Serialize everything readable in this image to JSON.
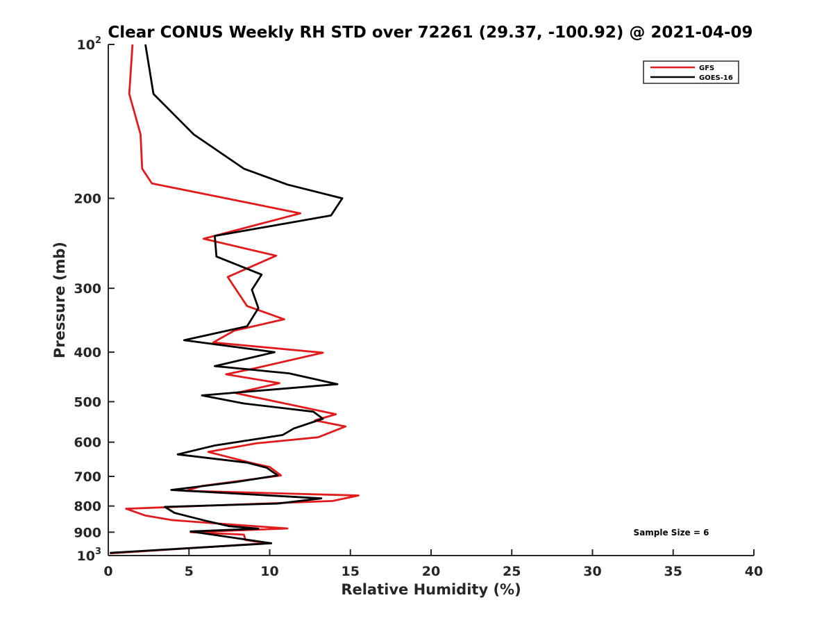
{
  "chart_data": {
    "type": "line",
    "title": "Clear CONUS Weekly RH STD over 72261 (29.37, -100.92) @ 2021-04-09",
    "xlabel": "Relative Humidity (%)",
    "ylabel": "Pressure (mb)",
    "xlim": [
      0,
      40
    ],
    "ylim": [
      100,
      1000
    ],
    "y_scale": "log",
    "y_reversed": true,
    "x_ticks": [
      0,
      5,
      10,
      15,
      20,
      25,
      30,
      35,
      40
    ],
    "y_ticks": [
      {
        "value": 100,
        "label": "10",
        "sup": "2"
      },
      {
        "value": 200,
        "label": "200"
      },
      {
        "value": 300,
        "label": "300"
      },
      {
        "value": 400,
        "label": "400"
      },
      {
        "value": 500,
        "label": "500"
      },
      {
        "value": 600,
        "label": "600"
      },
      {
        "value": 700,
        "label": "700"
      },
      {
        "value": 800,
        "label": "800"
      },
      {
        "value": 900,
        "label": "900"
      },
      {
        "value": 1000,
        "label": "10",
        "sup": "3"
      }
    ],
    "grid": false,
    "legend_position": "top-right",
    "series": [
      {
        "name": "GFS",
        "color": "#e31a1c",
        "points": [
          [
            1.5,
            100
          ],
          [
            1.3,
            125
          ],
          [
            2.0,
            150
          ],
          [
            2.1,
            175
          ],
          [
            2.7,
            187
          ],
          [
            11.9,
            214
          ],
          [
            5.9,
            240
          ],
          [
            10.4,
            259
          ],
          [
            7.4,
            285
          ],
          [
            7.8,
            298
          ],
          [
            8.6,
            325
          ],
          [
            10.9,
            345
          ],
          [
            7.8,
            363
          ],
          [
            6.5,
            383
          ],
          [
            13.3,
            401
          ],
          [
            9.1,
            430
          ],
          [
            7.3,
            442
          ],
          [
            10.6,
            460
          ],
          [
            7.9,
            481
          ],
          [
            14.1,
            529
          ],
          [
            12.8,
            544
          ],
          [
            14.7,
            559
          ],
          [
            13.0,
            587
          ],
          [
            9.2,
            603
          ],
          [
            6.2,
            627
          ],
          [
            8.8,
            658
          ],
          [
            10.0,
            671
          ],
          [
            10.7,
            697
          ],
          [
            5.8,
            731
          ],
          [
            4.8,
            747
          ],
          [
            15.5,
            763
          ],
          [
            13.9,
            782
          ],
          [
            1.1,
            810
          ],
          [
            2.3,
            835
          ],
          [
            3.9,
            852
          ],
          [
            6.2,
            863
          ],
          [
            11.1,
            885
          ],
          [
            5.1,
            900
          ],
          [
            8.4,
            910
          ],
          [
            8.5,
            932
          ],
          [
            9.8,
            946
          ],
          [
            0.1,
            990
          ]
        ]
      },
      {
        "name": "GOES-16",
        "color": "#000000",
        "points": [
          [
            2.3,
            100
          ],
          [
            2.8,
            125
          ],
          [
            5.3,
            150
          ],
          [
            8.4,
            175
          ],
          [
            11.1,
            188
          ],
          [
            14.5,
            200
          ],
          [
            13.8,
            216
          ],
          [
            6.6,
            237
          ],
          [
            6.7,
            260
          ],
          [
            9.5,
            282
          ],
          [
            8.9,
            302
          ],
          [
            9.3,
            328
          ],
          [
            8.6,
            356
          ],
          [
            4.7,
            379
          ],
          [
            10.3,
            400
          ],
          [
            6.6,
            426
          ],
          [
            11.2,
            440
          ],
          [
            14.2,
            462
          ],
          [
            5.8,
            486
          ],
          [
            8.4,
            504
          ],
          [
            12.7,
            523
          ],
          [
            13.3,
            540
          ],
          [
            11.5,
            564
          ],
          [
            10.8,
            581
          ],
          [
            6.6,
            609
          ],
          [
            4.3,
            634
          ],
          [
            8.6,
            658
          ],
          [
            9.8,
            673
          ],
          [
            10.5,
            697
          ],
          [
            7.9,
            718
          ],
          [
            3.9,
            744
          ],
          [
            13.2,
            773
          ],
          [
            10.5,
            791
          ],
          [
            3.5,
            803
          ],
          [
            4.1,
            825
          ],
          [
            6.1,
            856
          ],
          [
            7.5,
            876
          ],
          [
            9.3,
            886
          ],
          [
            5.1,
            897
          ],
          [
            7.3,
            918
          ],
          [
            10.1,
            946
          ],
          [
            0.1,
            988
          ]
        ]
      }
    ],
    "annotations": [
      "Sample Size = 6"
    ]
  }
}
